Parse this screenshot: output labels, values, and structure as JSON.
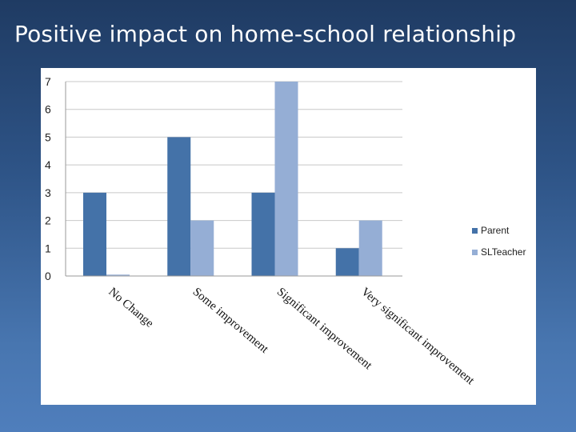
{
  "slide": {
    "title": "Positive impact on home-school relationship"
  },
  "colors": {
    "parent": "#4472a8",
    "sl_teacher": "#95aed5",
    "grid": "#c8c8c8",
    "axis": "#9a9a9a"
  },
  "chart_data": {
    "type": "bar",
    "title": "",
    "xlabel": "",
    "ylabel": "",
    "categories": [
      "No Change",
      "Some improvement",
      "Significant improvement",
      "Very significant improvement"
    ],
    "series": [
      {
        "name": "Parent",
        "values": [
          3,
          5,
          3,
          1
        ]
      },
      {
        "name": "SLTeacher",
        "values": [
          0.05,
          2,
          7,
          2
        ]
      }
    ],
    "ylim": [
      0,
      7
    ],
    "yticks": [
      "0",
      "1",
      "2",
      "3",
      "4",
      "5",
      "6",
      "7"
    ],
    "grid": true,
    "legend": "right"
  }
}
